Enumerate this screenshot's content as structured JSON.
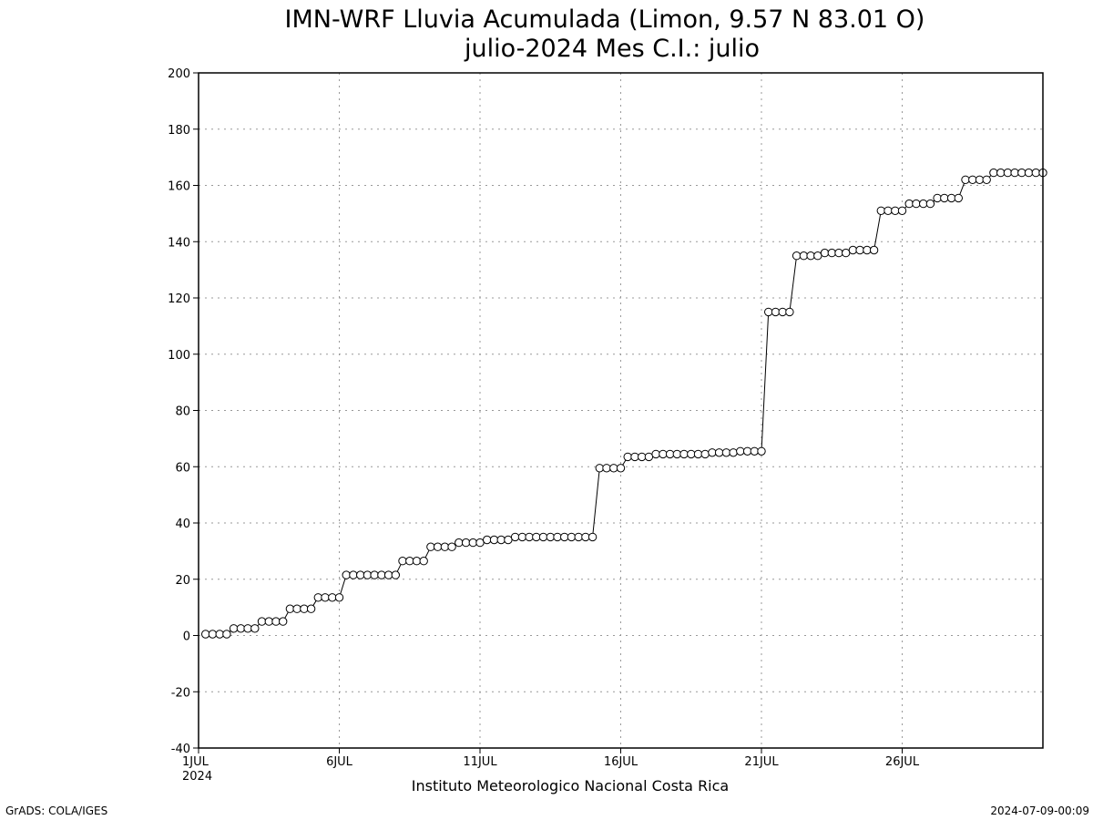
{
  "footer": {
    "left": "GrADS: COLA/IGES",
    "right": "2024-07-09-00:09"
  },
  "chart_data": {
    "type": "line",
    "title": "IMN-WRF  Lluvia Acumulada (Limon, 9.57  N 83.01  O)",
    "subtitle": "julio-2024 Mes C.I.: julio",
    "xlabel": "Instituto Meteorologico Nacional Costa Rica",
    "ylabel": "",
    "xlim": [
      1,
      31
    ],
    "ylim": [
      -40,
      200
    ],
    "y_ticks": [
      -40,
      -20,
      0,
      20,
      40,
      60,
      80,
      100,
      120,
      140,
      160,
      180,
      200
    ],
    "x_ticks": [
      {
        "day": 1,
        "label": "1JUL",
        "sublabel": "2024"
      },
      {
        "day": 6,
        "label": "6JUL"
      },
      {
        "day": 11,
        "label": "11JUL"
      },
      {
        "day": 16,
        "label": "16JUL"
      },
      {
        "day": 21,
        "label": "21JUL"
      },
      {
        "day": 26,
        "label": "26JUL"
      }
    ],
    "grid": true,
    "marker": "open-circle",
    "line_color": "#000000",
    "series": [
      {
        "x": [
          1.25,
          1.5,
          1.75,
          2.0,
          2.25,
          2.5,
          2.75,
          3.0,
          3.25,
          3.5,
          3.75,
          4.0,
          4.25,
          4.5,
          4.75,
          5.0,
          5.25,
          5.5,
          5.75,
          6.0,
          6.25,
          6.5,
          6.75,
          7.0,
          7.25,
          7.5,
          7.75,
          8.0,
          8.25,
          8.5,
          8.75,
          9.0,
          9.25,
          9.5,
          9.75,
          10.0,
          10.25,
          10.5,
          10.75,
          11.0,
          11.25,
          11.5,
          11.75,
          12.0,
          12.25,
          12.5,
          12.75,
          13.0,
          13.25,
          13.5,
          13.75,
          14.0,
          14.25,
          14.5,
          14.75,
          15.0,
          15.25,
          15.5,
          15.75,
          16.0,
          16.25,
          16.5,
          16.75,
          17.0,
          17.25,
          17.5,
          17.75,
          18.0,
          18.25,
          18.5,
          18.75,
          19.0,
          19.25,
          19.5,
          19.75,
          20.0,
          20.25,
          20.5,
          20.75,
          21.0,
          21.25,
          21.5,
          21.75,
          22.0,
          22.25,
          22.5,
          22.75,
          23.0,
          23.25,
          23.5,
          23.75,
          24.0,
          24.25,
          24.5,
          24.75,
          25.0,
          25.25,
          25.5,
          25.75,
          26.0,
          26.25,
          26.5,
          26.75,
          27.0,
          27.25,
          27.5,
          27.75,
          28.0,
          28.25,
          28.5,
          28.75,
          29.0,
          29.25,
          29.5,
          29.75,
          30.0,
          30.25,
          30.5,
          30.75,
          31.0
        ],
        "y": [
          0.5,
          0.5,
          0.5,
          0.5,
          2.5,
          2.5,
          2.5,
          2.5,
          5,
          5,
          5,
          5,
          9.5,
          9.5,
          9.5,
          9.5,
          13.5,
          13.5,
          13.5,
          13.5,
          21.5,
          21.5,
          21.5,
          21.5,
          21.5,
          21.5,
          21.5,
          21.5,
          26.5,
          26.5,
          26.5,
          26.5,
          31.5,
          31.5,
          31.5,
          31.5,
          33,
          33,
          33,
          33,
          34,
          34,
          34,
          34,
          35,
          35,
          35,
          35,
          35,
          35,
          35,
          35,
          35,
          35,
          35,
          35,
          59.5,
          59.5,
          59.5,
          59.5,
          63.5,
          63.5,
          63.5,
          63.5,
          64.5,
          64.5,
          64.5,
          64.5,
          64.5,
          64.5,
          64.5,
          64.5,
          65,
          65,
          65,
          65,
          65.5,
          65.5,
          65.5,
          65.5,
          115,
          115,
          115,
          115,
          135,
          135,
          135,
          135,
          136,
          136,
          136,
          136,
          137,
          137,
          137,
          137,
          151,
          151,
          151,
          151,
          153.5,
          153.5,
          153.5,
          153.5,
          155.5,
          155.5,
          155.5,
          155.5,
          162,
          162,
          162,
          162,
          164.5,
          164.5,
          164.5,
          164.5,
          164.5,
          164.5,
          164.5,
          164.5
        ]
      }
    ]
  }
}
